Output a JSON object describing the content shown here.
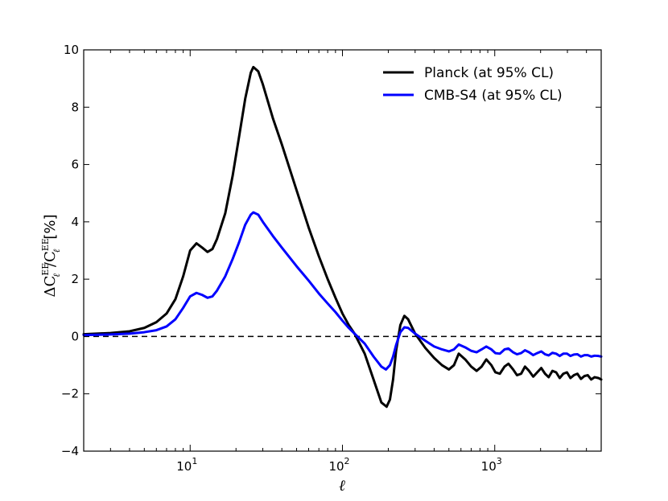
{
  "chart_data": {
    "type": "line",
    "title": "",
    "xlabel": "ℓ",
    "ylabel": {
      "prefix": "ΔC",
      "sub": "ℓ",
      "sup": "EE",
      "slash": "/C",
      "sub2": "ℓ",
      "sup2": "EE",
      "suffix": "[%]"
    },
    "x_scale": "log",
    "xlim": [
      2,
      5000
    ],
    "ylim": [
      -4,
      10
    ],
    "y_ticks": [
      "−4",
      "−2",
      "0",
      "2",
      "4",
      "6",
      "8",
      "10"
    ],
    "y_tick_values": [
      -4,
      -2,
      0,
      2,
      4,
      6,
      8,
      10
    ],
    "x_ticks": [
      {
        "value": 10,
        "base": "10",
        "exp": "1"
      },
      {
        "value": 100,
        "base": "10",
        "exp": "2"
      },
      {
        "value": 1000,
        "base": "10",
        "exp": "3"
      }
    ],
    "legend_position": "top-right",
    "reference_line": {
      "y": 0,
      "style": "dashed",
      "color": "#000000"
    },
    "series": [
      {
        "name": "Planck (at 95% CL)",
        "color": "#000000",
        "points": [
          [
            2,
            0.08
          ],
          [
            3,
            0.12
          ],
          [
            4,
            0.18
          ],
          [
            5,
            0.3
          ],
          [
            6,
            0.5
          ],
          [
            7,
            0.8
          ],
          [
            8,
            1.3
          ],
          [
            9,
            2.1
          ],
          [
            10,
            3.0
          ],
          [
            11,
            3.25
          ],
          [
            12,
            3.1
          ],
          [
            13,
            2.95
          ],
          [
            14,
            3.05
          ],
          [
            15,
            3.4
          ],
          [
            17,
            4.3
          ],
          [
            19,
            5.6
          ],
          [
            21,
            7.0
          ],
          [
            23,
            8.3
          ],
          [
            25,
            9.2
          ],
          [
            26,
            9.4
          ],
          [
            28,
            9.25
          ],
          [
            30,
            8.8
          ],
          [
            35,
            7.6
          ],
          [
            40,
            6.7
          ],
          [
            50,
            5.1
          ],
          [
            60,
            3.8
          ],
          [
            70,
            2.8
          ],
          [
            80,
            2.0
          ],
          [
            90,
            1.35
          ],
          [
            100,
            0.8
          ],
          [
            110,
            0.4
          ],
          [
            120,
            0.1
          ],
          [
            140,
            -0.6
          ],
          [
            160,
            -1.5
          ],
          [
            180,
            -2.3
          ],
          [
            195,
            -2.45
          ],
          [
            205,
            -2.2
          ],
          [
            215,
            -1.5
          ],
          [
            225,
            -0.5
          ],
          [
            240,
            0.4
          ],
          [
            255,
            0.72
          ],
          [
            270,
            0.6
          ],
          [
            300,
            0.1
          ],
          [
            350,
            -0.4
          ],
          [
            400,
            -0.75
          ],
          [
            450,
            -1.0
          ],
          [
            500,
            -1.15
          ],
          [
            540,
            -1.0
          ],
          [
            580,
            -0.6
          ],
          [
            640,
            -0.8
          ],
          [
            700,
            -1.05
          ],
          [
            760,
            -1.2
          ],
          [
            820,
            -1.05
          ],
          [
            880,
            -0.8
          ],
          [
            950,
            -1.0
          ],
          [
            1010,
            -1.25
          ],
          [
            1080,
            -1.3
          ],
          [
            1160,
            -1.05
          ],
          [
            1230,
            -0.95
          ],
          [
            1320,
            -1.15
          ],
          [
            1400,
            -1.35
          ],
          [
            1490,
            -1.3
          ],
          [
            1580,
            -1.05
          ],
          [
            1680,
            -1.2
          ],
          [
            1790,
            -1.4
          ],
          [
            1900,
            -1.25
          ],
          [
            2020,
            -1.1
          ],
          [
            2140,
            -1.3
          ],
          [
            2260,
            -1.42
          ],
          [
            2390,
            -1.2
          ],
          [
            2530,
            -1.25
          ],
          [
            2670,
            -1.45
          ],
          [
            2820,
            -1.3
          ],
          [
            2980,
            -1.25
          ],
          [
            3140,
            -1.45
          ],
          [
            3310,
            -1.35
          ],
          [
            3490,
            -1.3
          ],
          [
            3680,
            -1.48
          ],
          [
            3880,
            -1.38
          ],
          [
            4080,
            -1.35
          ],
          [
            4300,
            -1.5
          ],
          [
            4530,
            -1.42
          ],
          [
            4800,
            -1.45
          ],
          [
            5000,
            -1.5
          ]
        ]
      },
      {
        "name": "CMB-S4 (at 95% CL)",
        "color": "#0000ff",
        "points": [
          [
            2,
            0.05
          ],
          [
            3,
            0.07
          ],
          [
            4,
            0.1
          ],
          [
            5,
            0.15
          ],
          [
            6,
            0.22
          ],
          [
            7,
            0.35
          ],
          [
            8,
            0.6
          ],
          [
            9,
            1.0
          ],
          [
            10,
            1.4
          ],
          [
            11,
            1.52
          ],
          [
            12,
            1.45
          ],
          [
            13,
            1.35
          ],
          [
            14,
            1.4
          ],
          [
            15,
            1.6
          ],
          [
            17,
            2.1
          ],
          [
            19,
            2.7
          ],
          [
            21,
            3.3
          ],
          [
            23,
            3.9
          ],
          [
            25,
            4.25
          ],
          [
            26,
            4.33
          ],
          [
            28,
            4.25
          ],
          [
            30,
            4.0
          ],
          [
            35,
            3.5
          ],
          [
            40,
            3.1
          ],
          [
            50,
            2.45
          ],
          [
            60,
            1.95
          ],
          [
            70,
            1.5
          ],
          [
            80,
            1.15
          ],
          [
            90,
            0.85
          ],
          [
            100,
            0.55
          ],
          [
            110,
            0.3
          ],
          [
            120,
            0.1
          ],
          [
            140,
            -0.25
          ],
          [
            160,
            -0.7
          ],
          [
            180,
            -1.05
          ],
          [
            193,
            -1.15
          ],
          [
            205,
            -1.0
          ],
          [
            215,
            -0.7
          ],
          [
            225,
            -0.3
          ],
          [
            240,
            0.15
          ],
          [
            255,
            0.32
          ],
          [
            270,
            0.3
          ],
          [
            300,
            0.1
          ],
          [
            350,
            -0.15
          ],
          [
            400,
            -0.35
          ],
          [
            450,
            -0.45
          ],
          [
            500,
            -0.52
          ],
          [
            540,
            -0.45
          ],
          [
            580,
            -0.28
          ],
          [
            640,
            -0.38
          ],
          [
            700,
            -0.5
          ],
          [
            760,
            -0.55
          ],
          [
            820,
            -0.45
          ],
          [
            880,
            -0.35
          ],
          [
            950,
            -0.45
          ],
          [
            1010,
            -0.58
          ],
          [
            1080,
            -0.6
          ],
          [
            1160,
            -0.45
          ],
          [
            1230,
            -0.42
          ],
          [
            1320,
            -0.55
          ],
          [
            1400,
            -0.62
          ],
          [
            1490,
            -0.58
          ],
          [
            1580,
            -0.48
          ],
          [
            1680,
            -0.55
          ],
          [
            1790,
            -0.65
          ],
          [
            1900,
            -0.58
          ],
          [
            2020,
            -0.52
          ],
          [
            2140,
            -0.62
          ],
          [
            2260,
            -0.66
          ],
          [
            2390,
            -0.57
          ],
          [
            2530,
            -0.6
          ],
          [
            2670,
            -0.68
          ],
          [
            2820,
            -0.6
          ],
          [
            2980,
            -0.6
          ],
          [
            3140,
            -0.68
          ],
          [
            3310,
            -0.63
          ],
          [
            3490,
            -0.62
          ],
          [
            3680,
            -0.7
          ],
          [
            3880,
            -0.65
          ],
          [
            4080,
            -0.65
          ],
          [
            4300,
            -0.7
          ],
          [
            4530,
            -0.67
          ],
          [
            4800,
            -0.68
          ],
          [
            5000,
            -0.7
          ]
        ]
      }
    ]
  }
}
